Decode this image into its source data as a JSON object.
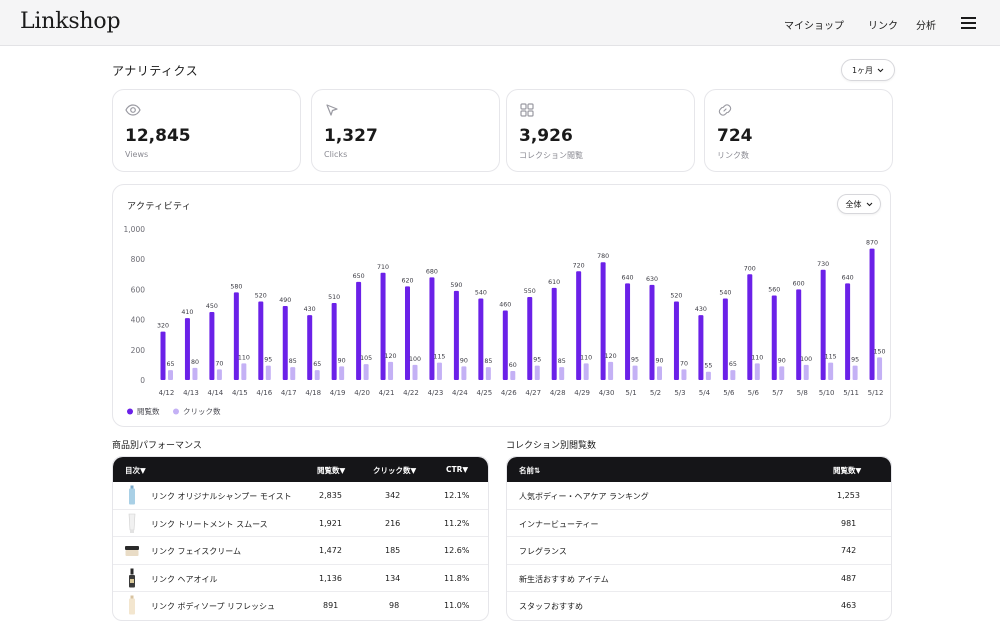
{
  "app": {
    "logo": "Linkshop"
  },
  "nav": {
    "my_shop": "マイショップ",
    "links": "リンク",
    "analytics": "分析"
  },
  "page": {
    "title": "アナリティクス",
    "range_label": "1ヶ月"
  },
  "stats": [
    {
      "value": "12,845",
      "label": "Views",
      "icon": "eye-icon"
    },
    {
      "value": "1,327",
      "label": "Clicks",
      "icon": "cursor-icon"
    },
    {
      "value": "3,926",
      "label": "コレクション閲覧",
      "icon": "grid-icon"
    },
    {
      "value": "724",
      "label": "リンク数",
      "icon": "link-icon"
    }
  ],
  "activity": {
    "title": "アクティビティ",
    "filter_label": "全体"
  },
  "chart_data": {
    "type": "bar",
    "categories": [
      "4/12",
      "4/13",
      "4/14",
      "4/15",
      "4/16",
      "4/17",
      "4/18",
      "4/19",
      "4/20",
      "4/21",
      "4/22",
      "4/23",
      "4/24",
      "4/25",
      "4/26",
      "4/27",
      "4/28",
      "4/29",
      "4/30",
      "5/1",
      "5/2",
      "5/3",
      "5/4",
      "5/6",
      "5/6",
      "5/7",
      "5/8",
      "5/10",
      "5/11",
      "5/12"
    ],
    "series": [
      {
        "name": "閲覧数",
        "color": "#6b21e8",
        "values": [
          320,
          410,
          450,
          580,
          520,
          490,
          430,
          510,
          650,
          710,
          620,
          680,
          590,
          540,
          460,
          550,
          610,
          720,
          780,
          640,
          630,
          520,
          430,
          540,
          700,
          560,
          600,
          730,
          640,
          870
        ]
      },
      {
        "name": "クリック数",
        "color": "#c4b1f5",
        "values": [
          65,
          80,
          70,
          110,
          95,
          85,
          65,
          90,
          105,
          120,
          100,
          115,
          90,
          85,
          60,
          95,
          85,
          110,
          120,
          95,
          90,
          70,
          55,
          65,
          110,
          90,
          100,
          115,
          95,
          150
        ]
      }
    ],
    "yticks": [
      "1,000",
      "800",
      "600",
      "400",
      "200",
      "0"
    ],
    "ylim": [
      0,
      1000
    ],
    "legend": "bottom-left",
    "grid": false
  },
  "products": {
    "title": "商品別パフォーマンス",
    "columns": [
      "目次▼",
      "閲覧数▼",
      "クリック数▼",
      "CTR▼"
    ],
    "rows": [
      {
        "name": "リンク オリジナルシャンプー モイスト",
        "views": "2,835",
        "clicks": "342",
        "ctr": "12.1%"
      },
      {
        "name": "リンク トリートメント スムース",
        "views": "1,921",
        "clicks": "216",
        "ctr": "11.2%"
      },
      {
        "name": "リンク フェイスクリーム",
        "views": "1,472",
        "clicks": "185",
        "ctr": "12.6%"
      },
      {
        "name": "リンク ヘアオイル",
        "views": "1,136",
        "clicks": "134",
        "ctr": "11.8%"
      },
      {
        "name": "リンク ボディソープ リフレッシュ",
        "views": "891",
        "clicks": "98",
        "ctr": "11.0%"
      }
    ]
  },
  "collections": {
    "title": "コレクション別閲覧数",
    "columns": [
      "名前⇅",
      "閲覧数▼"
    ],
    "rows": [
      {
        "name": "人気ボディー・ヘアケア ランキング",
        "views": "1,253"
      },
      {
        "name": "インナービューティー",
        "views": "981"
      },
      {
        "name": "フレグランス",
        "views": "742"
      },
      {
        "name": "新生活おすすめ アイテム",
        "views": "487"
      },
      {
        "name": "スタッフおすすめ",
        "views": "463"
      }
    ]
  }
}
